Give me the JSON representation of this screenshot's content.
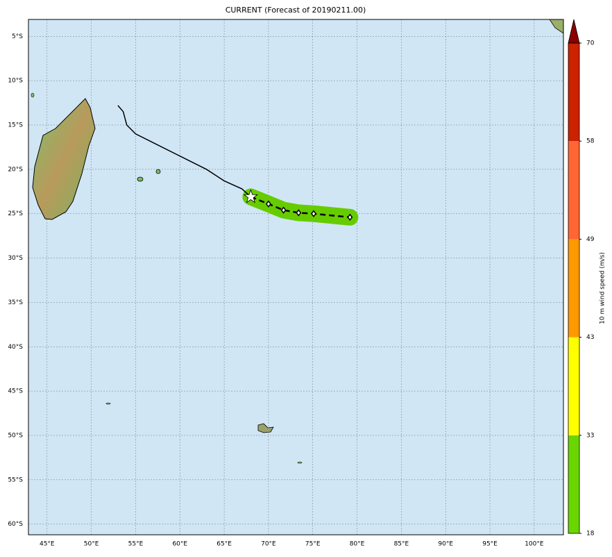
{
  "title": "CURRENT (Forecast of 20190211.00)",
  "lon_ticks": [
    {
      "value": 45,
      "label": "45°E"
    },
    {
      "value": 50,
      "label": "50°E"
    },
    {
      "value": 55,
      "label": "55°E"
    },
    {
      "value": 60,
      "label": "60°E"
    },
    {
      "value": 65,
      "label": "65°E"
    },
    {
      "value": 70,
      "label": "70°E"
    },
    {
      "value": 75,
      "label": "75°E"
    },
    {
      "value": 80,
      "label": "80°E"
    },
    {
      "value": 85,
      "label": "85°E"
    },
    {
      "value": 90,
      "label": "90°E"
    },
    {
      "value": 95,
      "label": "95°E"
    },
    {
      "value": 100,
      "label": "100°E"
    }
  ],
  "lat_ticks": [
    {
      "value": -5,
      "label": "5°S"
    },
    {
      "value": -10,
      "label": "10°S"
    },
    {
      "value": -15,
      "label": "15°S"
    },
    {
      "value": -20,
      "label": "20°S"
    },
    {
      "value": -25,
      "label": "25°S"
    },
    {
      "value": -30,
      "label": "30°S"
    },
    {
      "value": -35,
      "label": "35°S"
    },
    {
      "value": -40,
      "label": "40°S"
    },
    {
      "value": -45,
      "label": "45°S"
    },
    {
      "value": -50,
      "label": "50°S"
    },
    {
      "value": -55,
      "label": "55°S"
    },
    {
      "value": -60,
      "label": "60°S"
    }
  ],
  "lon_range": [
    42.9,
    103.3
  ],
  "lat_range": [
    -61.2,
    -3.1
  ],
  "observed_track": {
    "lon": [
      53,
      53.6,
      54,
      55,
      57,
      60,
      63,
      65,
      67,
      68
    ],
    "lat": [
      -12.8,
      -13.5,
      -15,
      -16,
      -17,
      -18.5,
      -20,
      -21.3,
      -22.2,
      -23.1
    ]
  },
  "forecast_track": {
    "lon": [
      68,
      70,
      71.7,
      73.4,
      75.1,
      79.2
    ],
    "lat": [
      -23.1,
      -23.9,
      -24.6,
      -24.9,
      -25,
      -25.4
    ],
    "color": "#66cc00"
  },
  "colorbar": {
    "label": "10 m wind speed (m/s)",
    "ticks": [
      18,
      33,
      43,
      49,
      58,
      70
    ],
    "colors": [
      "#6ad600",
      "#ffff00",
      "#ff9900",
      "#ff6633",
      "#cc2200"
    ],
    "extend_color": "#8b0000"
  }
}
